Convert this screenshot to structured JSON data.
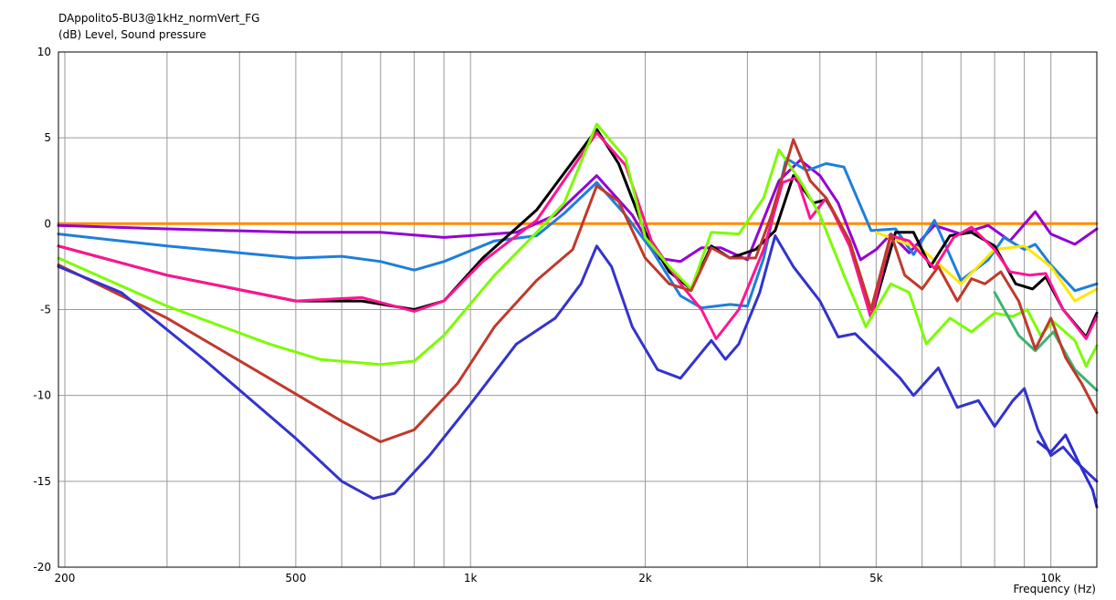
{
  "chart_data": {
    "type": "line",
    "title": "DAppolito5-BU3@1kHz_normVert_FG",
    "ylabel": "(dB)  Level, Sound pressure",
    "xlabel": "Frequency  (Hz)",
    "x_scale": "log",
    "xlim": [
      195,
      12000
    ],
    "ylim": [
      -20,
      10
    ],
    "yticks": [
      10,
      5,
      0,
      -5,
      -10,
      -15,
      -20
    ],
    "xtick_labels": [
      {
        "f": 200,
        "label": "200"
      },
      {
        "f": 500,
        "label": "500"
      },
      {
        "f": 1000,
        "label": "1k"
      },
      {
        "f": 2000,
        "label": "2k"
      },
      {
        "f": 5000,
        "label": "5k"
      },
      {
        "f": 10000,
        "label": "10k"
      }
    ],
    "grid": true,
    "series": [
      {
        "color": "#ff8c00",
        "points": [
          [
            195,
            0
          ],
          [
            12000,
            0
          ]
        ]
      },
      {
        "color": "#9400d3",
        "points": [
          [
            195,
            -0.1
          ],
          [
            300,
            -0.3
          ],
          [
            500,
            -0.5
          ],
          [
            700,
            -0.5
          ],
          [
            900,
            -0.8
          ],
          [
            1200,
            -0.5
          ],
          [
            1400,
            0.5
          ],
          [
            1650,
            2.8
          ],
          [
            1900,
            0.5
          ],
          [
            2100,
            -2
          ],
          [
            2300,
            -2.2
          ],
          [
            2500,
            -1.4
          ],
          [
            2700,
            -1.4
          ],
          [
            3000,
            -2.1
          ],
          [
            3400,
            2.5
          ],
          [
            3700,
            3.7
          ],
          [
            4000,
            2.8
          ],
          [
            4300,
            1.2
          ],
          [
            4700,
            -2.1
          ],
          [
            5000,
            -1.5
          ],
          [
            5300,
            -0.6
          ],
          [
            5700,
            -1.7
          ],
          [
            6300,
            -0.1
          ],
          [
            7000,
            -0.6
          ],
          [
            7800,
            -0.1
          ],
          [
            8500,
            -1
          ],
          [
            9400,
            0.7
          ],
          [
            10000,
            -0.6
          ],
          [
            11000,
            -1.2
          ],
          [
            12000,
            -0.3
          ]
        ]
      },
      {
        "color": "#1e7fdb",
        "points": [
          [
            195,
            -0.6
          ],
          [
            300,
            -1.3
          ],
          [
            500,
            -2
          ],
          [
            600,
            -1.9
          ],
          [
            700,
            -2.2
          ],
          [
            800,
            -2.7
          ],
          [
            900,
            -2.2
          ],
          [
            1100,
            -1
          ],
          [
            1300,
            -0.7
          ],
          [
            1450,
            0.6
          ],
          [
            1650,
            2.4
          ],
          [
            1850,
            0.5
          ],
          [
            2050,
            -1.5
          ],
          [
            2300,
            -4.2
          ],
          [
            2500,
            -4.9
          ],
          [
            2800,
            -4.7
          ],
          [
            3000,
            -4.8
          ],
          [
            3200,
            -2
          ],
          [
            3500,
            3.8
          ],
          [
            3800,
            3.1
          ],
          [
            4100,
            3.5
          ],
          [
            4400,
            3.3
          ],
          [
            4900,
            -0.4
          ],
          [
            5400,
            -0.3
          ],
          [
            5800,
            -1.8
          ],
          [
            6300,
            0.2
          ],
          [
            7000,
            -3.3
          ],
          [
            7800,
            -2.1
          ],
          [
            8300,
            -0.8
          ],
          [
            9000,
            -1.5
          ],
          [
            9400,
            -1.2
          ],
          [
            10000,
            -2.4
          ],
          [
            11000,
            -3.9
          ],
          [
            12000,
            -3.5
          ]
        ]
      },
      {
        "color": "#ffe600",
        "points": [
          [
            5000,
            -0.5
          ],
          [
            6000,
            -1.5
          ],
          [
            7000,
            -3.5
          ],
          [
            8000,
            -1.5
          ],
          [
            9000,
            -1.3
          ],
          [
            10000,
            -2.5
          ],
          [
            11000,
            -4.5
          ],
          [
            12000,
            -3.8
          ]
        ]
      },
      {
        "color": "#000000",
        "points": [
          [
            195,
            -1.3
          ],
          [
            300,
            -3
          ],
          [
            500,
            -4.5
          ],
          [
            650,
            -4.5
          ],
          [
            800,
            -5
          ],
          [
            900,
            -4.5
          ],
          [
            1050,
            -2
          ],
          [
            1300,
            0.8
          ],
          [
            1650,
            5.5
          ],
          [
            1800,
            3.5
          ],
          [
            2000,
            -0.5
          ],
          [
            2200,
            -2.8
          ],
          [
            2400,
            -3.8
          ],
          [
            2600,
            -1.3
          ],
          [
            2800,
            -2
          ],
          [
            3100,
            -1.5
          ],
          [
            3350,
            -0.4
          ],
          [
            3600,
            2.8
          ],
          [
            3900,
            1.2
          ],
          [
            4100,
            1.4
          ],
          [
            4500,
            -1
          ],
          [
            4900,
            -5.5
          ],
          [
            5400,
            -0.5
          ],
          [
            5800,
            -0.5
          ],
          [
            6200,
            -2.5
          ],
          [
            6700,
            -0.7
          ],
          [
            7300,
            -0.5
          ],
          [
            8000,
            -1.3
          ],
          [
            8700,
            -3.5
          ],
          [
            9300,
            -3.8
          ],
          [
            9800,
            -3.1
          ],
          [
            10500,
            -5
          ],
          [
            11500,
            -6.6
          ],
          [
            12000,
            -5.2
          ]
        ]
      },
      {
        "color": "#ff1493",
        "points": [
          [
            195,
            -1.3
          ],
          [
            300,
            -3
          ],
          [
            500,
            -4.5
          ],
          [
            650,
            -4.3
          ],
          [
            800,
            -5.1
          ],
          [
            900,
            -4.5
          ],
          [
            1050,
            -2.2
          ],
          [
            1300,
            0.2
          ],
          [
            1650,
            5.3
          ],
          [
            1850,
            3.4
          ],
          [
            2050,
            -1
          ],
          [
            2300,
            -3.5
          ],
          [
            2500,
            -5
          ],
          [
            2650,
            -6.7
          ],
          [
            2900,
            -5
          ],
          [
            3200,
            -1.5
          ],
          [
            3450,
            2.4
          ],
          [
            3650,
            2.7
          ],
          [
            3850,
            0.3
          ],
          [
            4100,
            1.5
          ],
          [
            4500,
            -1.3
          ],
          [
            4900,
            -5.5
          ],
          [
            5300,
            -0.7
          ],
          [
            5700,
            -1
          ],
          [
            6300,
            -2.6
          ],
          [
            6800,
            -0.8
          ],
          [
            7300,
            -0.2
          ],
          [
            8000,
            -1.5
          ],
          [
            8500,
            -2.8
          ],
          [
            9200,
            -3
          ],
          [
            9800,
            -2.9
          ],
          [
            10500,
            -5
          ],
          [
            11500,
            -6.7
          ],
          [
            12000,
            -5.4
          ]
        ]
      },
      {
        "color": "#7cfc00",
        "points": [
          [
            195,
            -2
          ],
          [
            300,
            -4.8
          ],
          [
            450,
            -7
          ],
          [
            550,
            -7.9
          ],
          [
            700,
            -8.2
          ],
          [
            800,
            -8
          ],
          [
            900,
            -6.5
          ],
          [
            1100,
            -3
          ],
          [
            1300,
            -0.5
          ],
          [
            1450,
            1.2
          ],
          [
            1650,
            5.8
          ],
          [
            1850,
            3.8
          ],
          [
            2000,
            -0.8
          ],
          [
            2200,
            -2.5
          ],
          [
            2400,
            -3.8
          ],
          [
            2600,
            -0.5
          ],
          [
            2900,
            -0.6
          ],
          [
            3200,
            1.5
          ],
          [
            3400,
            4.3
          ],
          [
            3700,
            2.5
          ],
          [
            4000,
            0.5
          ],
          [
            4400,
            -3
          ],
          [
            4800,
            -6
          ],
          [
            5300,
            -3.5
          ],
          [
            5700,
            -4
          ],
          [
            6100,
            -7
          ],
          [
            6700,
            -5.5
          ],
          [
            7300,
            -6.3
          ],
          [
            8000,
            -5.2
          ],
          [
            8600,
            -5.4
          ],
          [
            9100,
            -5
          ],
          [
            9600,
            -6.5
          ],
          [
            10100,
            -5.7
          ],
          [
            11000,
            -6.8
          ],
          [
            11500,
            -8.3
          ],
          [
            12000,
            -7.1
          ]
        ]
      },
      {
        "color": "#3cb371",
        "points": [
          [
            8000,
            -4
          ],
          [
            8800,
            -6.5
          ],
          [
            9400,
            -7.4
          ],
          [
            10100,
            -6.3
          ],
          [
            11000,
            -8.5
          ],
          [
            12000,
            -9.7
          ]
        ]
      },
      {
        "color": "#c0392b",
        "points": [
          [
            195,
            -2.4
          ],
          [
            300,
            -5.5
          ],
          [
            450,
            -9
          ],
          [
            600,
            -11.5
          ],
          [
            700,
            -12.7
          ],
          [
            800,
            -12
          ],
          [
            950,
            -9.3
          ],
          [
            1100,
            -6
          ],
          [
            1300,
            -3.3
          ],
          [
            1500,
            -1.5
          ],
          [
            1650,
            2.2
          ],
          [
            1800,
            1.3
          ],
          [
            2000,
            -2
          ],
          [
            2200,
            -3.5
          ],
          [
            2400,
            -3.9
          ],
          [
            2600,
            -1.4
          ],
          [
            2800,
            -2
          ],
          [
            3100,
            -2
          ],
          [
            3300,
            0.5
          ],
          [
            3600,
            4.9
          ],
          [
            3850,
            2.5
          ],
          [
            4100,
            1.5
          ],
          [
            4500,
            -1
          ],
          [
            4900,
            -5
          ],
          [
            5300,
            -0.6
          ],
          [
            5600,
            -3
          ],
          [
            6000,
            -3.8
          ],
          [
            6400,
            -2.5
          ],
          [
            6900,
            -4.5
          ],
          [
            7300,
            -3.2
          ],
          [
            7700,
            -3.5
          ],
          [
            8200,
            -2.8
          ],
          [
            8800,
            -4.5
          ],
          [
            9400,
            -7.3
          ],
          [
            10000,
            -5.5
          ],
          [
            10600,
            -7.8
          ],
          [
            11300,
            -9.3
          ],
          [
            12000,
            -11
          ]
        ]
      },
      {
        "color": "#3333cc",
        "points": [
          [
            195,
            -2.5
          ],
          [
            250,
            -4
          ],
          [
            350,
            -8
          ],
          [
            500,
            -12.5
          ],
          [
            600,
            -15
          ],
          [
            680,
            -16
          ],
          [
            740,
            -15.7
          ],
          [
            850,
            -13.5
          ],
          [
            1000,
            -10.5
          ],
          [
            1200,
            -7
          ],
          [
            1400,
            -5.5
          ],
          [
            1550,
            -3.5
          ],
          [
            1650,
            -1.3
          ],
          [
            1750,
            -2.5
          ],
          [
            1900,
            -6
          ],
          [
            2100,
            -8.5
          ],
          [
            2300,
            -9
          ],
          [
            2500,
            -7.5
          ],
          [
            2600,
            -6.8
          ],
          [
            2750,
            -7.9
          ],
          [
            2900,
            -7
          ],
          [
            3150,
            -4
          ],
          [
            3350,
            -0.7
          ],
          [
            3600,
            -2.5
          ],
          [
            4000,
            -4.5
          ],
          [
            4300,
            -6.6
          ],
          [
            4600,
            -6.4
          ],
          [
            5000,
            -7.6
          ],
          [
            5500,
            -9
          ],
          [
            5800,
            -10
          ],
          [
            6400,
            -8.4
          ],
          [
            6900,
            -10.7
          ],
          [
            7500,
            -10.3
          ],
          [
            8000,
            -11.8
          ],
          [
            8600,
            -10.3
          ],
          [
            9000,
            -9.6
          ],
          [
            9500,
            -12
          ],
          [
            10000,
            -13.5
          ],
          [
            10500,
            -13
          ],
          [
            11000,
            -13.8
          ],
          [
            12000,
            -15
          ]
        ]
      },
      {
        "color": "#2b2bd0",
        "points": [
          [
            9500,
            -12.7
          ],
          [
            10000,
            -13.3
          ],
          [
            10600,
            -12.3
          ],
          [
            11200,
            -14
          ],
          [
            11800,
            -15.5
          ],
          [
            12000,
            -16.5
          ]
        ]
      }
    ]
  }
}
